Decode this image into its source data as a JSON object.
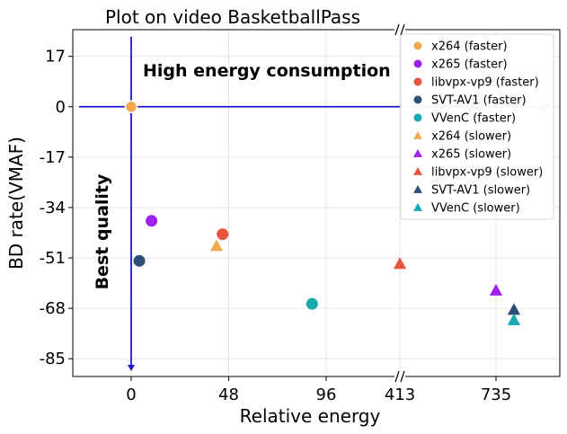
{
  "chart_data": {
    "type": "scatter",
    "title": "Plot on video BasketballPass",
    "xlabel": "Relative energy",
    "ylabel": "BD rate(VMAF)",
    "axis_break": "broken x-axis between 96 and 413",
    "x_ticks": [
      "0",
      "48",
      "96",
      "413",
      "735"
    ],
    "y_ticks": [
      "17",
      "0",
      "-17",
      "-34",
      "-51",
      "-68",
      "-85"
    ],
    "ylim": [
      -91,
      26
    ],
    "grid": true,
    "legend_position": "top-right",
    "annotations": {
      "top": "High energy consumption",
      "left": "Best quality"
    },
    "series": [
      {
        "name": "x264 (faster)",
        "color": "#F4A950",
        "marker": "circle",
        "x": 0,
        "y": 0
      },
      {
        "name": "x265 (faster)",
        "color": "#A020F0",
        "marker": "circle",
        "x": 10,
        "y": -38.5
      },
      {
        "name": "libvpx-vp9 (faster)",
        "color": "#E8553E",
        "marker": "circle",
        "x": 45,
        "y": -43
      },
      {
        "name": "SVT-AV1 (faster)",
        "color": "#2E5077",
        "marker": "circle",
        "x": 4,
        "y": -52
      },
      {
        "name": "VVenC (faster)",
        "color": "#17A8B0",
        "marker": "circle",
        "x": 119,
        "y": -66.5
      },
      {
        "name": "x264 (slower)",
        "color": "#F4A950",
        "marker": "triangle",
        "x": 42,
        "y": -47
      },
      {
        "name": "x265 (slower)",
        "color": "#A020F0",
        "marker": "triangle",
        "x": 735,
        "y": -62
      },
      {
        "name": "libvpx-vp9 (slower)",
        "color": "#E8553E",
        "marker": "triangle",
        "x": 413,
        "y": -53
      },
      {
        "name": "SVT-AV1 (slower)",
        "color": "#2E5077",
        "marker": "triangle",
        "x": 795,
        "y": -68.5
      },
      {
        "name": "VVenC (slower)",
        "color": "#17A8B0",
        "marker": "triangle",
        "x": 795,
        "y": -72
      }
    ]
  }
}
